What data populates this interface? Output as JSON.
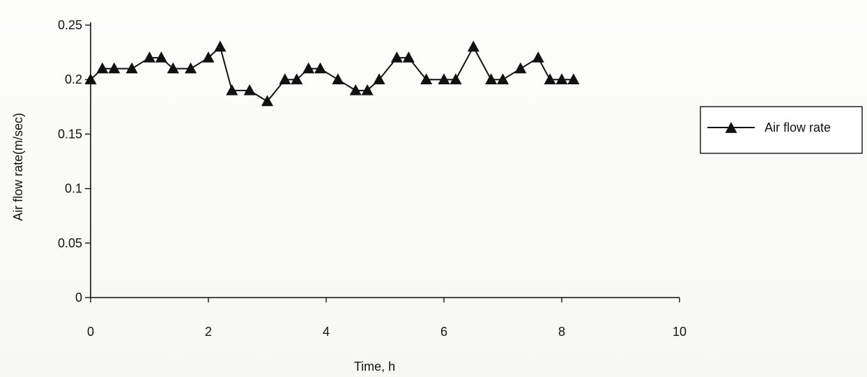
{
  "chart_data": {
    "type": "line",
    "xlabel": "Time, h",
    "ylabel": "Air flow rate(m/sec)",
    "xlim": [
      0,
      10
    ],
    "ylim": [
      0,
      0.25
    ],
    "x_ticks": [
      "0",
      "2",
      "4",
      "6",
      "8",
      "10"
    ],
    "x_tick_values": [
      0,
      2,
      4,
      6,
      8,
      10
    ],
    "y_ticks": [
      "0",
      "0.05",
      "0.1",
      "0.15",
      "0.2",
      "0.25"
    ],
    "y_tick_values": [
      0,
      0.05,
      0.1,
      0.15,
      0.2,
      0.25
    ],
    "grid": false,
    "legend_position": "right",
    "marker": "triangle",
    "line_color": "#111111",
    "series": [
      {
        "name": "Air flow rate",
        "x": [
          0,
          0.2,
          0.4,
          0.7,
          1.0,
          1.2,
          1.4,
          1.7,
          2.0,
          2.2,
          2.4,
          2.7,
          3.0,
          3.3,
          3.5,
          3.7,
          3.9,
          4.2,
          4.5,
          4.7,
          4.9,
          5.2,
          5.4,
          5.7,
          6.0,
          6.2,
          6.5,
          6.8,
          7.0,
          7.3,
          7.6,
          7.8,
          8.0,
          8.2
        ],
        "y": [
          0.2,
          0.21,
          0.21,
          0.21,
          0.22,
          0.22,
          0.21,
          0.21,
          0.22,
          0.23,
          0.19,
          0.19,
          0.18,
          0.2,
          0.2,
          0.21,
          0.21,
          0.2,
          0.19,
          0.19,
          0.2,
          0.22,
          0.22,
          0.2,
          0.2,
          0.2,
          0.23,
          0.2,
          0.2,
          0.21,
          0.22,
          0.2,
          0.2,
          0.2
        ]
      }
    ]
  }
}
